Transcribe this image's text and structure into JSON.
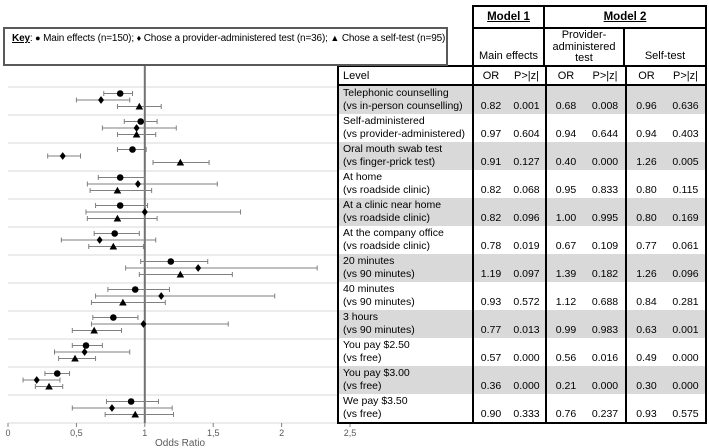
{
  "figure": {
    "key": {
      "label": "Key",
      "sep_after_label": ": ",
      "item_sep": "; ",
      "items": [
        {
          "glyph": "●",
          "text": " Main effects (n=150)"
        },
        {
          "glyph": "♦",
          "text": " Chose a provider-administered test (n=36)"
        },
        {
          "glyph": "▲",
          "text": " Chose a self-test (n=95)"
        }
      ]
    }
  },
  "table": {
    "headers": {
      "model1": "Model 1",
      "model2": "Model 2",
      "main_effects": "Main effects",
      "provider": "Provider-administered test",
      "self_test": "Self-test",
      "level": "Level",
      "or": "OR",
      "p": "P>|z|"
    },
    "rows": [
      {
        "label": "Telephonic counselling",
        "vs": "(vs in-person counselling)",
        "m1_or": "0.82",
        "m1_p": "0.001",
        "m2p_or": "0.68",
        "m2p_p": "0.008",
        "m2s_or": "0.96",
        "m2s_p": "0.636"
      },
      {
        "label": "Self-administered",
        "vs": "(vs provider-administered)",
        "m1_or": "0.97",
        "m1_p": "0.604",
        "m2p_or": "0.94",
        "m2p_p": "0.644",
        "m2s_or": "0.94",
        "m2s_p": "0.403"
      },
      {
        "label": "Oral mouth swab test",
        "vs": "(vs finger-prick test)",
        "m1_or": "0.91",
        "m1_p": "0.127",
        "m2p_or": "0.40",
        "m2p_p": "0.000",
        "m2s_or": "1.26",
        "m2s_p": "0.005"
      },
      {
        "label": "At home",
        "vs": "(vs roadside clinic)",
        "m1_or": "0.82",
        "m1_p": "0.068",
        "m2p_or": "0.95",
        "m2p_p": "0.833",
        "m2s_or": "0.80",
        "m2s_p": "0.115"
      },
      {
        "label": "At a clinic near home",
        "vs": "(vs roadside clinic)",
        "m1_or": "0.82",
        "m1_p": "0.096",
        "m2p_or": "1.00",
        "m2p_p": "0.995",
        "m2s_or": "0.80",
        "m2s_p": "0.169"
      },
      {
        "label": "At the company office",
        "vs": "(vs roadside clinic)",
        "m1_or": "0.78",
        "m1_p": "0.019",
        "m2p_or": "0.67",
        "m2p_p": "0.109",
        "m2s_or": "0.77",
        "m2s_p": "0.061"
      },
      {
        "label": "20 minutes",
        "vs": "(vs 90 minutes)",
        "m1_or": "1.19",
        "m1_p": "0.097",
        "m2p_or": "1.39",
        "m2p_p": "0.182",
        "m2s_or": "1.26",
        "m2s_p": "0.096"
      },
      {
        "label": "40 minutes",
        "vs": "(vs 90 minutes)",
        "m1_or": "0.93",
        "m1_p": "0.572",
        "m2p_or": "1.12",
        "m2p_p": "0.688",
        "m2s_or": "0.84",
        "m2s_p": "0.281"
      },
      {
        "label": "3 hours",
        "vs": "(vs 90 minutes)",
        "m1_or": "0.77",
        "m1_p": "0.013",
        "m2p_or": "0.99",
        "m2p_p": "0.983",
        "m2s_or": "0.63",
        "m2s_p": "0.001"
      },
      {
        "label": "You pay $2.50",
        "vs": "(vs free)",
        "m1_or": "0.57",
        "m1_p": "0.000",
        "m2p_or": "0.56",
        "m2p_p": "0.016",
        "m2s_or": "0.49",
        "m2s_p": "0.000"
      },
      {
        "label": "You pay $3.00",
        "vs": "(vs free)",
        "m1_or": "0.36",
        "m1_p": "0.000",
        "m2p_or": "0.21",
        "m2p_p": "0.000",
        "m2s_or": "0.30",
        "m2s_p": "0.000"
      },
      {
        "label": "We pay $3.50",
        "vs": "(vs free)",
        "m1_or": "0.90",
        "m1_p": "0.333",
        "m2p_or": "0.76",
        "m2p_p": "0.237",
        "m2s_or": "0.93",
        "m2s_p": "0.575"
      }
    ]
  },
  "chart_data": {
    "type": "scatter",
    "subtype": "forest-plot",
    "xlabel": "Odds Ratio",
    "x_tick_labels": [
      "0",
      "0,5",
      "1",
      "1,5",
      "2",
      "2,5"
    ],
    "x_tick_values": [
      0,
      0.5,
      1,
      1.5,
      2,
      2.5
    ],
    "xlim": [
      0,
      2.55
    ],
    "reference_line_x": 1,
    "grid": "horizontal lines between attribute groups",
    "legend_position": "top-left box",
    "categories": [
      "Telephonic counselling (vs in-person counselling)",
      "Self-administered (vs provider-administered)",
      "Oral mouth swab test (vs finger-prick test)",
      "At home (vs roadside clinic)",
      "At a clinic near home (vs roadside clinic)",
      "At the company office (vs roadside clinic)",
      "20 minutes (vs 90 minutes)",
      "40 minutes (vs 90 minutes)",
      "3 hours (vs 90 minutes)",
      "You pay $2.50 (vs free)",
      "You pay $3.00 (vs free)",
      "We pay $3.50 (vs free)"
    ],
    "series": [
      {
        "name": "Main effects (n=150)",
        "marker": "circle",
        "points": [
          {
            "or": 0.82,
            "lo": 0.7,
            "hi": 0.91
          },
          {
            "or": 0.97,
            "lo": 0.85,
            "hi": 1.09
          },
          {
            "or": 0.91,
            "lo": 0.8,
            "hi": 1.01
          },
          {
            "or": 0.82,
            "lo": 0.66,
            "hi": 1.0
          },
          {
            "or": 0.82,
            "lo": 0.64,
            "hi": 1.02
          },
          {
            "or": 0.78,
            "lo": 0.63,
            "hi": 0.96
          },
          {
            "or": 1.19,
            "lo": 0.97,
            "hi": 1.46
          },
          {
            "or": 0.93,
            "lo": 0.73,
            "hi": 1.18
          },
          {
            "or": 0.77,
            "lo": 0.62,
            "hi": 0.95
          },
          {
            "or": 0.57,
            "lo": 0.47,
            "hi": 0.69
          },
          {
            "or": 0.36,
            "lo": 0.27,
            "hi": 0.45
          },
          {
            "or": 0.9,
            "lo": 0.72,
            "hi": 1.1
          }
        ]
      },
      {
        "name": "Chose a provider-administered test (n=36)",
        "marker": "diamond",
        "points": [
          {
            "or": 0.68,
            "lo": 0.5,
            "hi": 0.89
          },
          {
            "or": 0.94,
            "lo": 0.69,
            "hi": 1.23
          },
          {
            "or": 0.4,
            "lo": 0.29,
            "hi": 0.53
          },
          {
            "or": 0.95,
            "lo": 0.58,
            "hi": 1.53
          },
          {
            "or": 1.0,
            "lo": 0.57,
            "hi": 1.7
          },
          {
            "or": 0.67,
            "lo": 0.39,
            "hi": 1.08
          },
          {
            "or": 1.39,
            "lo": 0.86,
            "hi": 2.26
          },
          {
            "or": 1.12,
            "lo": 0.64,
            "hi": 1.95
          },
          {
            "or": 0.99,
            "lo": 0.61,
            "hi": 1.61
          },
          {
            "or": 0.56,
            "lo": 0.34,
            "hi": 0.89
          },
          {
            "or": 0.21,
            "lo": 0.11,
            "hi": 0.38
          },
          {
            "or": 0.76,
            "lo": 0.47,
            "hi": 1.2
          }
        ]
      },
      {
        "name": "Chose a self-test (n=95)",
        "marker": "triangle",
        "points": [
          {
            "or": 0.96,
            "lo": 0.8,
            "hi": 1.12
          },
          {
            "or": 0.94,
            "lo": 0.8,
            "hi": 1.08
          },
          {
            "or": 1.26,
            "lo": 1.06,
            "hi": 1.47
          },
          {
            "or": 0.8,
            "lo": 0.6,
            "hi": 1.05
          },
          {
            "or": 0.8,
            "lo": 0.58,
            "hi": 1.09
          },
          {
            "or": 0.77,
            "lo": 0.59,
            "hi": 0.99
          },
          {
            "or": 1.26,
            "lo": 0.96,
            "hi": 1.64
          },
          {
            "or": 0.84,
            "lo": 0.61,
            "hi": 1.15
          },
          {
            "or": 0.63,
            "lo": 0.47,
            "hi": 0.83
          },
          {
            "or": 0.49,
            "lo": 0.37,
            "hi": 0.64
          },
          {
            "or": 0.3,
            "lo": 0.2,
            "hi": 0.4
          },
          {
            "or": 0.93,
            "lo": 0.71,
            "hi": 1.21
          }
        ]
      }
    ],
    "colors": {
      "marker": "#000000",
      "ci_line": "#7f7f7f",
      "gridline": "#d9d9d9",
      "reference_line": "#737373",
      "axis_text": "#595959",
      "row_stripe": "#d9d9d9",
      "table_border": "#000000"
    }
  }
}
